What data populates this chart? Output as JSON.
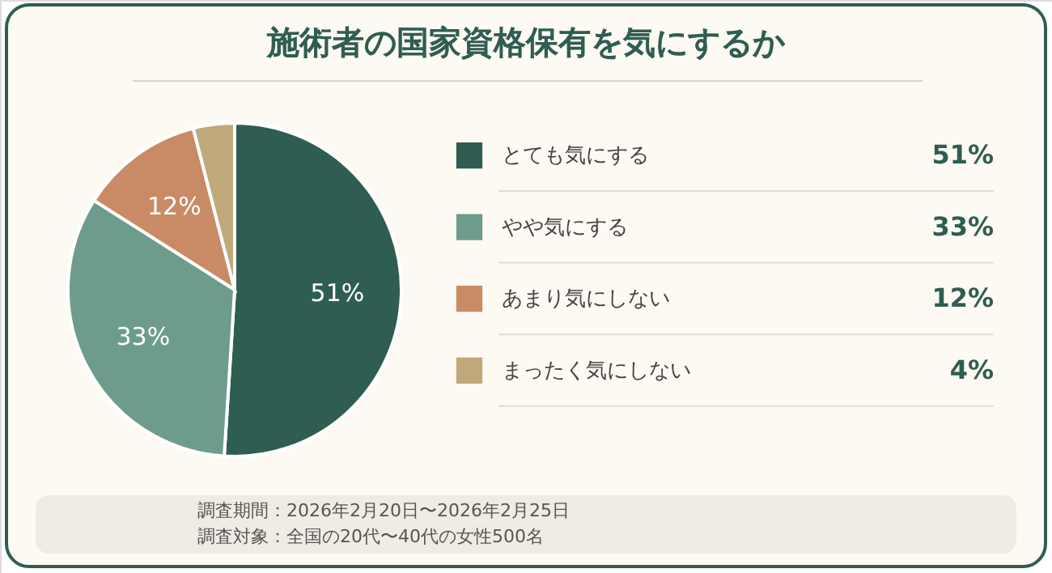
{
  "chart_data": {
    "type": "pie",
    "title": "施術者の国家資格保有を気にするか",
    "categories": [
      "とても気にする",
      "やや気にする",
      "あまり気にしない",
      "まったく気にしない"
    ],
    "values": [
      51,
      33,
      12,
      4
    ],
    "colors": [
      "#2f5d52",
      "#6e9c8c",
      "#c98a66",
      "#bfa87a"
    ],
    "value_labels": [
      "51%",
      "33%",
      "12%",
      "4%"
    ],
    "legend": "right",
    "annotations": [
      "調査期間：2026年2月20日〜2026年2月25日",
      "調査対象：全国の20代〜40代の女性500名"
    ]
  }
}
